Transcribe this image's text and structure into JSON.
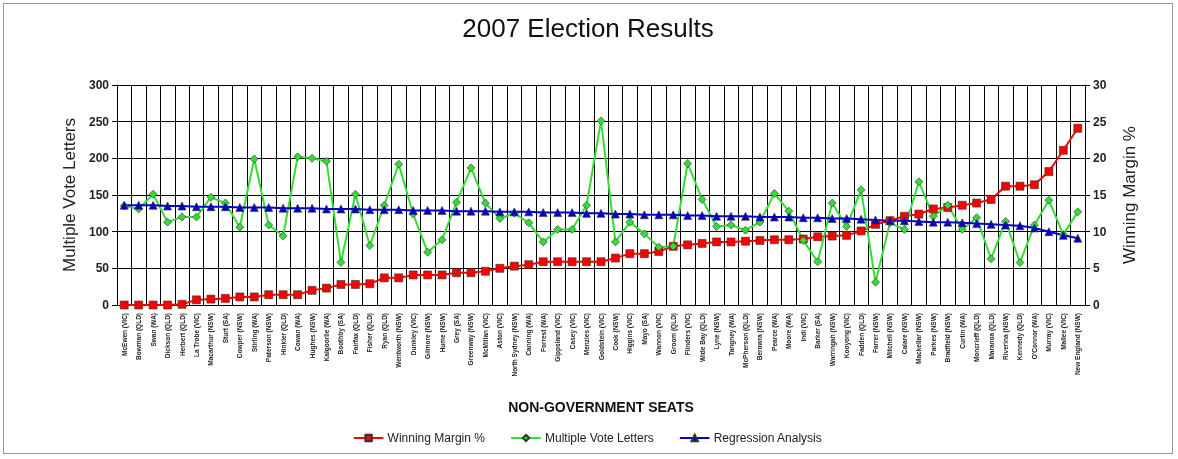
{
  "chart_data": {
    "type": "line",
    "title": "2007 Election Results",
    "xlabel": "NON-GOVERNMENT SEATS",
    "ylabel": "Multiple Vote Letters",
    "y2label": "Winning Margin %",
    "categories": [
      "McEwen (VIC)",
      "Bowman (QLD)",
      "Swan (WA)",
      "Dickson (QLD)",
      "Herbert (QLD)",
      "La Trobe (VIC)",
      "Macarthur (NSW)",
      "Sturt (SA)",
      "Cowper (NSW)",
      "Stirling (WA)",
      "Paterson (NSW)",
      "Hinkler (QLD)",
      "Cowan (WA)",
      "Hughes (NSW)",
      "Kalgoorlie (WA)",
      "Boothby (SA)",
      "Fairfax (QLD)",
      "Fisher (QLD)",
      "Ryan (QLD)",
      "Wentworth (NSW)",
      "Dunkley (VIC)",
      "Gilmore (NSW)",
      "Hume (NSW)",
      "Grey (SA)",
      "Greenway (NSW)",
      "McMillan (VIC)",
      "Aston (VIC)",
      "North Sydney (NSW)",
      "Canning (WA)",
      "Forrest (WA)",
      "Gippsland (VIC)",
      "Casey (VIC)",
      "Menzies (VIC)",
      "Goldstein (VIC)",
      "Cook (NSW)",
      "Higgins (VIC)",
      "Mayo (SA)",
      "Wannon (VIC)",
      "Groom (QLD)",
      "Flinders (VIC)",
      "Wide Bay (QLD)",
      "Lyne (NSW)",
      "Tangney (WA)",
      "McPherson (QLD)",
      "Berowra (NSW)",
      "Pearce (WA)",
      "Moore (WA)",
      "Indi (VIC)",
      "Barker (SA)",
      "Warringah (NSW)",
      "Kooyong (VIC)",
      "Fadden (QLD)",
      "Farrer (NSW)",
      "Mitchell (NSW)",
      "Calare (NSW)",
      "Mackellar (NSW)",
      "Parkes (NSW)",
      "Bradfield (NSW)",
      "Curtin (WA)",
      "Moncrieff (QLD)",
      "Maranoa (QLD)",
      "Riverina (NSW)",
      "Kennedy (QLD)",
      "O'Connor (WA)",
      "Murray (VIC)",
      "Mallee (VIC)",
      "New England (NSW)"
    ],
    "series": [
      {
        "name": "Winning Margin %",
        "color": "#ff0000",
        "marker": "square",
        "axis": "y2",
        "values": [
          0,
          0,
          0,
          0,
          0.1,
          0.7,
          0.8,
          0.9,
          1.1,
          1.1,
          1.4,
          1.4,
          1.4,
          2.0,
          2.3,
          2.8,
          2.8,
          2.9,
          3.7,
          3.7,
          4.1,
          4.1,
          4.1,
          4.4,
          4.4,
          4.6,
          5.0,
          5.3,
          5.5,
          5.9,
          5.9,
          5.9,
          5.9,
          5.9,
          6.4,
          7.0,
          7.0,
          7.3,
          8.0,
          8.2,
          8.4,
          8.6,
          8.6,
          8.7,
          8.8,
          8.9,
          8.9,
          9.0,
          9.3,
          9.4,
          9.5,
          10.1,
          11.0,
          11.5,
          12.1,
          12.4,
          13.1,
          13.3,
          13.6,
          13.9,
          14.4,
          16.2,
          16.2,
          16.4,
          18.2,
          21.1,
          24.1
        ]
      },
      {
        "name": "Multiple Vote Letters",
        "color": "#33dd33",
        "marker": "diamond",
        "values": [
          135,
          131,
          151,
          113,
          120,
          120,
          147,
          139,
          106,
          199,
          109,
          94,
          202,
          200,
          196,
          58,
          151,
          81,
          136,
          192,
          124,
          72,
          89,
          140,
          187,
          139,
          118,
          125,
          112,
          86,
          103,
          103,
          136,
          251,
          86,
          113,
          97,
          79,
          80,
          193,
          144,
          107,
          109,
          102,
          113,
          152,
          128,
          88,
          59,
          139,
          107,
          157,
          31,
          112,
          103,
          168,
          121,
          136,
          103,
          119,
          63,
          114,
          58,
          109,
          143,
          96,
          127
        ]
      },
      {
        "name": "Regression Analysis",
        "color": "#0000cc",
        "marker": "triangle",
        "values": [
          136,
          136,
          136,
          135,
          135,
          134,
          134,
          134,
          133,
          133,
          133,
          132,
          132,
          132,
          131,
          131,
          131,
          130,
          130,
          130,
          129,
          129,
          129,
          128,
          128,
          128,
          127,
          127,
          127,
          126,
          126,
          126,
          125,
          125,
          124,
          124,
          123,
          123,
          123,
          122,
          122,
          121,
          121,
          121,
          120,
          120,
          120,
          119,
          119,
          118,
          118,
          117,
          116,
          115,
          115,
          114,
          113,
          113,
          112,
          111,
          110,
          109,
          108,
          105,
          100,
          95,
          91
        ]
      }
    ],
    "ylim": [
      0,
      300
    ],
    "yticks": [
      0,
      50,
      100,
      150,
      200,
      250,
      300
    ],
    "y2lim": [
      0,
      30
    ],
    "y2ticks": [
      0,
      5,
      10,
      15,
      20,
      25,
      30
    ],
    "grid": true,
    "legend": "bottom",
    "line_style": "solid"
  }
}
